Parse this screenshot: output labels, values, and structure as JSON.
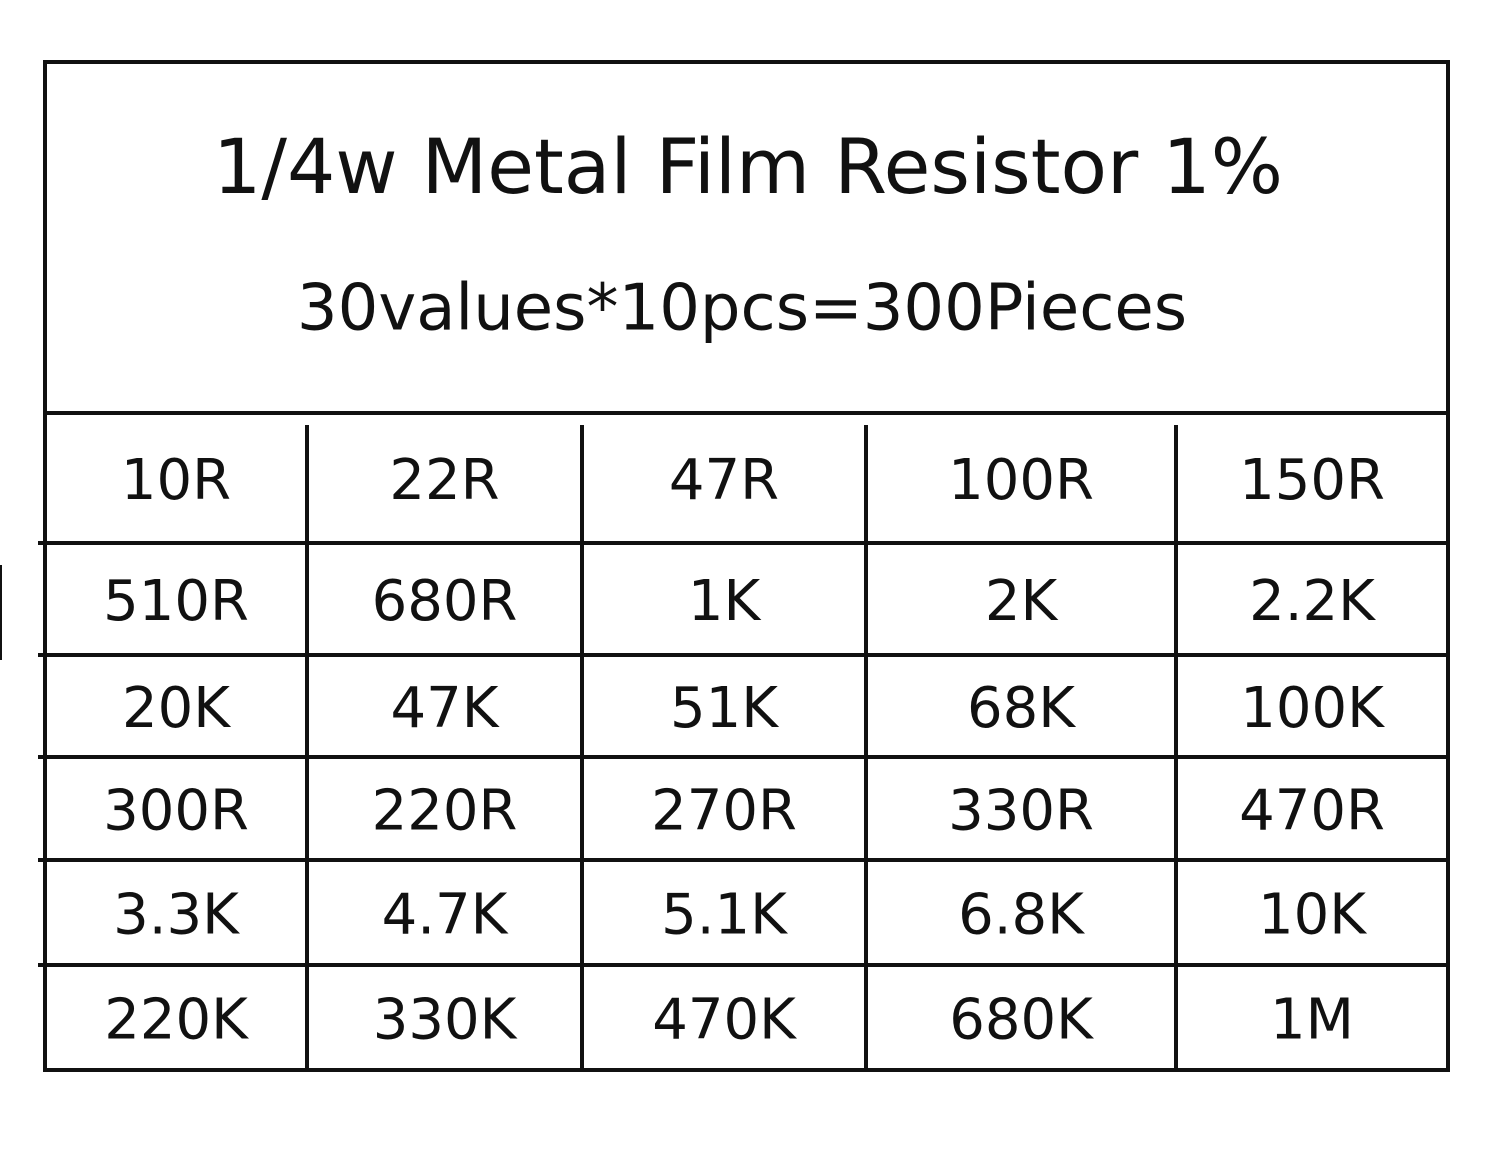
{
  "header": {
    "title": "1/4w Metal Film Resistor 1%",
    "subtitle": "30values*10pcs=300Pieces"
  },
  "table": {
    "rows": [
      [
        "10R",
        "22R",
        "47R",
        "100R",
        "150R"
      ],
      [
        "510R",
        "680R",
        "1K",
        "2K",
        "2.2K"
      ],
      [
        "20K",
        "47K",
        "51K",
        "68K",
        "100K"
      ],
      [
        "300R",
        "220R",
        "270R",
        "330R",
        "470R"
      ],
      [
        "3.3K",
        "4.7K",
        "5.1K",
        "6.8K",
        "10K"
      ],
      [
        "220K",
        "330K",
        "470K",
        "680K",
        "1M"
      ]
    ]
  }
}
